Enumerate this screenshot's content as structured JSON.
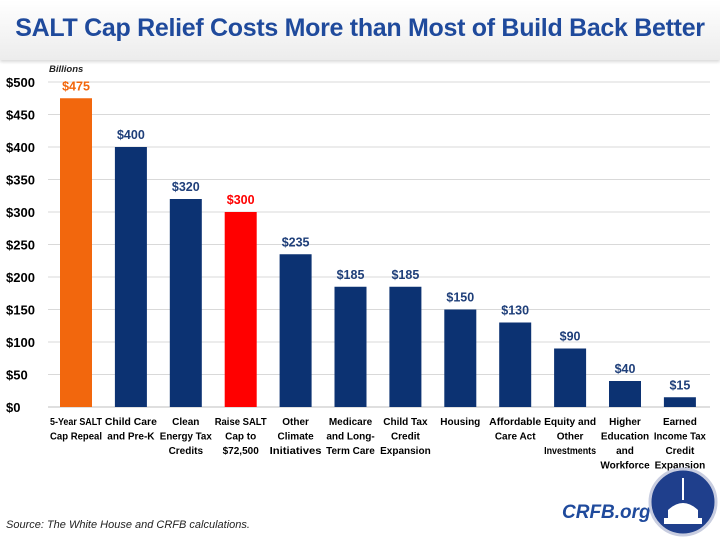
{
  "title": "SALT Cap Relief Costs More than Most of Build Back Better",
  "source": "Source: The White House and CRFB calculations.",
  "brand": "CRFB.org",
  "colors": {
    "navy": "#0c3272",
    "orange": "#f2670d",
    "red": "#ff0000",
    "grid": "#d9d9d9"
  },
  "chart_data": {
    "type": "bar",
    "title": "SALT Cap Relief Costs More than Most of Build Back Better",
    "ylabel": "Billions",
    "ylim": [
      0,
      500
    ],
    "yticks": [
      "$0",
      "$50",
      "$100",
      "$150",
      "$200",
      "$250",
      "$300",
      "$350",
      "$400",
      "$450",
      "$500"
    ],
    "grid": true,
    "categories": [
      [
        "5-Year SALT",
        "Cap Repeal"
      ],
      [
        "Child Care",
        "and Pre-K"
      ],
      [
        "Clean",
        "Energy Tax",
        "Credits"
      ],
      [
        "Raise SALT",
        "Cap to",
        "$72,500"
      ],
      [
        "Other",
        "Climate",
        "Initiatives"
      ],
      [
        "Medicare",
        "and Long-",
        "Term Care"
      ],
      [
        "Child Tax",
        "Credit",
        "Expansion"
      ],
      [
        "Housing"
      ],
      [
        "Affordable",
        "Care Act"
      ],
      [
        "Equity and",
        "Other",
        "Investments"
      ],
      [
        "Higher",
        "Education",
        "and",
        "Workforce"
      ],
      [
        "Earned",
        "Income Tax",
        "Credit",
        "Expansion"
      ]
    ],
    "values": [
      475,
      400,
      320,
      300,
      235,
      185,
      185,
      150,
      130,
      90,
      40,
      15
    ],
    "data_labels": [
      "$475",
      "$400",
      "$320",
      "$300",
      "$235",
      "$185",
      "$185",
      "$150",
      "$130",
      "$90",
      "$40",
      "$15"
    ],
    "bar_colors": [
      "orange",
      "navy",
      "navy",
      "red",
      "navy",
      "navy",
      "navy",
      "navy",
      "navy",
      "navy",
      "navy",
      "navy"
    ]
  }
}
